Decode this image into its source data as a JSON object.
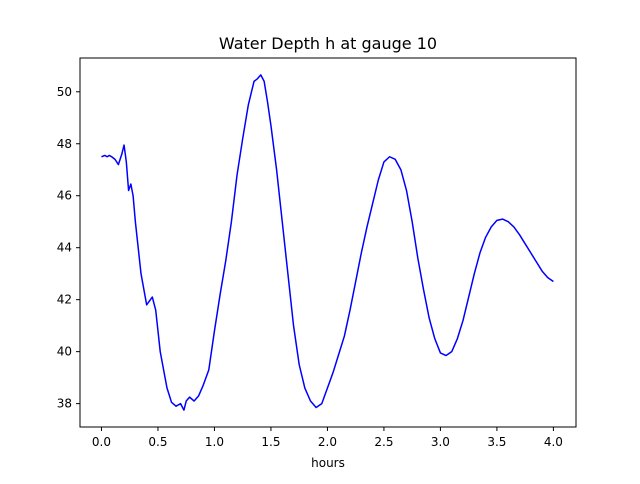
{
  "chart_data": {
    "type": "line",
    "title": "Water Depth h at gauge 10",
    "xlabel": "hours",
    "ylabel": "",
    "xlim": [
      -0.19,
      4.2
    ],
    "ylim": [
      37.1,
      51.3
    ],
    "xticks": [
      0.0,
      0.5,
      1.0,
      1.5,
      2.0,
      2.5,
      3.0,
      3.5,
      4.0
    ],
    "xtick_labels": [
      "0.0",
      "0.5",
      "1.0",
      "1.5",
      "2.0",
      "2.5",
      "3.0",
      "3.5",
      "4.0"
    ],
    "yticks": [
      38,
      40,
      42,
      44,
      46,
      48,
      50
    ],
    "ytick_labels": [
      "38",
      "40",
      "42",
      "44",
      "46",
      "48",
      "50"
    ],
    "grid": false,
    "series": [
      {
        "color": "#0000ff",
        "x": [
          0.0,
          0.03,
          0.05,
          0.07,
          0.09,
          0.12,
          0.15,
          0.18,
          0.2,
          0.22,
          0.24,
          0.26,
          0.28,
          0.3,
          0.32,
          0.35,
          0.4,
          0.45,
          0.48,
          0.5,
          0.52,
          0.55,
          0.58,
          0.62,
          0.66,
          0.7,
          0.73,
          0.75,
          0.78,
          0.82,
          0.86,
          0.9,
          0.95,
          1.0,
          1.05,
          1.1,
          1.15,
          1.2,
          1.25,
          1.3,
          1.35,
          1.38,
          1.41,
          1.44,
          1.47,
          1.5,
          1.55,
          1.6,
          1.65,
          1.7,
          1.75,
          1.8,
          1.85,
          1.9,
          1.95,
          2.0,
          2.05,
          2.1,
          2.15,
          2.2,
          2.25,
          2.3,
          2.35,
          2.4,
          2.45,
          2.5,
          2.55,
          2.6,
          2.65,
          2.7,
          2.75,
          2.8,
          2.85,
          2.9,
          2.95,
          3.0,
          3.05,
          3.1,
          3.15,
          3.2,
          3.25,
          3.3,
          3.35,
          3.4,
          3.45,
          3.5,
          3.55,
          3.6,
          3.65,
          3.7,
          3.75,
          3.8,
          3.85,
          3.9,
          3.95,
          4.0
        ],
        "y": [
          47.5,
          47.55,
          47.5,
          47.55,
          47.5,
          47.4,
          47.2,
          47.6,
          47.95,
          47.3,
          46.2,
          46.45,
          46.0,
          45.0,
          44.2,
          43.0,
          41.8,
          42.1,
          41.6,
          40.8,
          40.0,
          39.3,
          38.6,
          38.05,
          37.9,
          38.0,
          37.75,
          38.1,
          38.25,
          38.1,
          38.3,
          38.7,
          39.3,
          40.8,
          42.2,
          43.5,
          45.0,
          46.8,
          48.2,
          49.5,
          50.4,
          50.5,
          50.65,
          50.4,
          49.6,
          48.7,
          47.0,
          45.0,
          43.0,
          41.0,
          39.5,
          38.6,
          38.1,
          37.85,
          38.0,
          38.6,
          39.2,
          39.9,
          40.6,
          41.6,
          42.7,
          43.8,
          44.8,
          45.7,
          46.6,
          47.3,
          47.5,
          47.4,
          47.0,
          46.2,
          45.0,
          43.6,
          42.4,
          41.3,
          40.5,
          39.95,
          39.85,
          40.0,
          40.5,
          41.2,
          42.1,
          43.0,
          43.8,
          44.4,
          44.8,
          45.05,
          45.1,
          45.0,
          44.8,
          44.5,
          44.15,
          43.8,
          43.45,
          43.1,
          42.85,
          42.7
        ]
      }
    ]
  }
}
